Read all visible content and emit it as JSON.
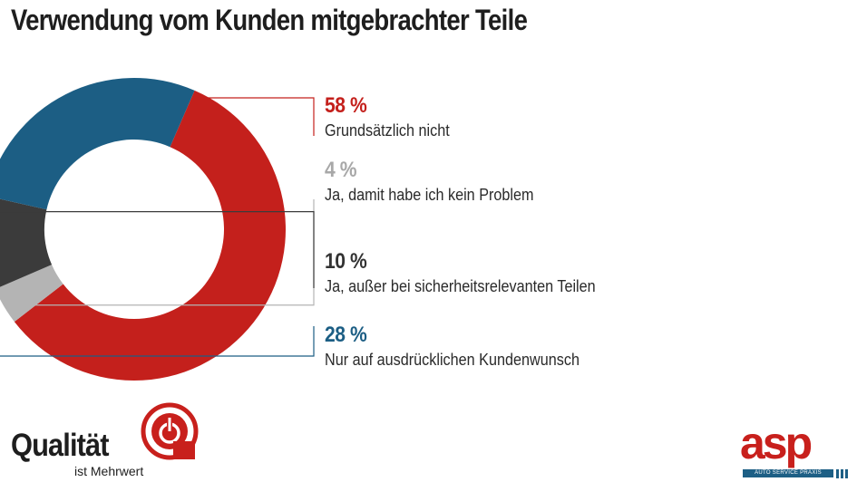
{
  "title": "Verwendung vom Kunden mitgebrachter Teile",
  "chart_data": {
    "type": "pie",
    "variant": "donut",
    "title": "Verwendung vom Kunden mitgebrachter Teile",
    "unit": "%",
    "slices": [
      {
        "label": "Grundsätzlich nicht",
        "value": 58,
        "display": "58 %",
        "color": "#c4201c"
      },
      {
        "label": "Ja, damit habe ich kein Problem",
        "value": 4,
        "display": "4 %",
        "color": "#b4b4b4"
      },
      {
        "label": "Ja, außer bei sicherheitsrelevanten Teilen",
        "value": 10,
        "display": "10 %",
        "color": "#3b3b3b"
      },
      {
        "label": "Nur auf ausdrücklichen Kundenwunsch",
        "value": 28,
        "display": "28 %",
        "color": "#1c5e84"
      }
    ]
  },
  "logos": {
    "left": {
      "word": "Qualität",
      "tagline": "ist Mehrwert",
      "icon": "power-icon"
    },
    "right": {
      "word": "asp",
      "tagline": "AUTO SERVICE PRAXIS"
    }
  }
}
